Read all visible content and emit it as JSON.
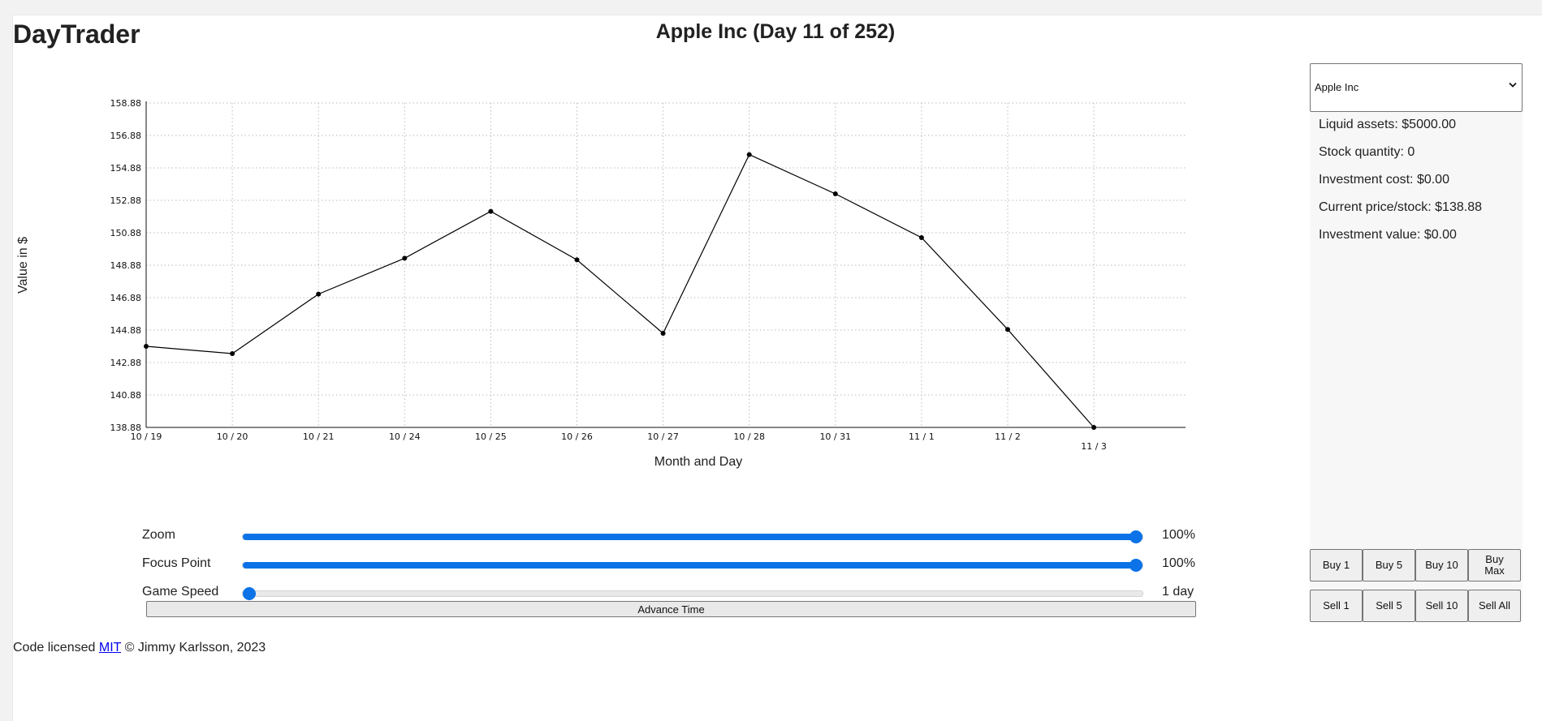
{
  "app": {
    "name": "DayTrader"
  },
  "game": {
    "title": "Apple Inc (Day 11 of 252)"
  },
  "chart_data": {
    "type": "line",
    "xlabel": "Month and Day",
    "ylabel": "Value in $",
    "categories": [
      "10 / 19",
      "10 / 20",
      "10 / 21",
      "10 / 24",
      "10 / 25",
      "10 / 26",
      "10 / 27",
      "10 / 28",
      "10 / 31",
      "11 / 1",
      "11 / 2",
      "11 / 3"
    ],
    "values": [
      143.88,
      143.43,
      147.1,
      149.31,
      152.2,
      149.21,
      144.68,
      155.7,
      153.28,
      150.58,
      144.92,
      138.88
    ],
    "yticks": [
      "138.88",
      "140.88",
      "142.88",
      "144.88",
      "146.88",
      "148.88",
      "150.88",
      "152.88",
      "154.88",
      "156.88",
      "158.88"
    ],
    "ylim": [
      138.88,
      158.88
    ],
    "grid": true,
    "colors": {
      "line": "#000000",
      "grid": "#bbbbbb"
    }
  },
  "controls": {
    "zoom": {
      "label": "Zoom",
      "value_text": "100%",
      "fraction": 1.0
    },
    "focus": {
      "label": "Focus Point",
      "value_text": "100%",
      "fraction": 1.0
    },
    "speed": {
      "label": "Game Speed",
      "value_text": "1 day",
      "fraction": 0.0
    },
    "advance_label": "Advance Time",
    "accent": "#0b72e7"
  },
  "sidebar": {
    "company_select": {
      "selected": "Apple Inc"
    },
    "stats": {
      "liquid_assets": "Liquid assets: $5000.00",
      "stock_quantity": "Stock quantity: 0",
      "investment_cost": "Investment cost: $0.00",
      "current_price": "Current price/stock: $138.88",
      "investment_value": "Investment value: $0.00"
    },
    "buy_buttons": [
      "Buy 1",
      "Buy 5",
      "Buy 10",
      "Buy Max"
    ],
    "sell_buttons": [
      "Sell 1",
      "Sell 5",
      "Sell 10",
      "Sell All"
    ]
  },
  "footer": {
    "prefix": "Code licensed",
    "link_text": "MIT",
    "suffix": "© Jimmy Karlsson, 2023"
  }
}
